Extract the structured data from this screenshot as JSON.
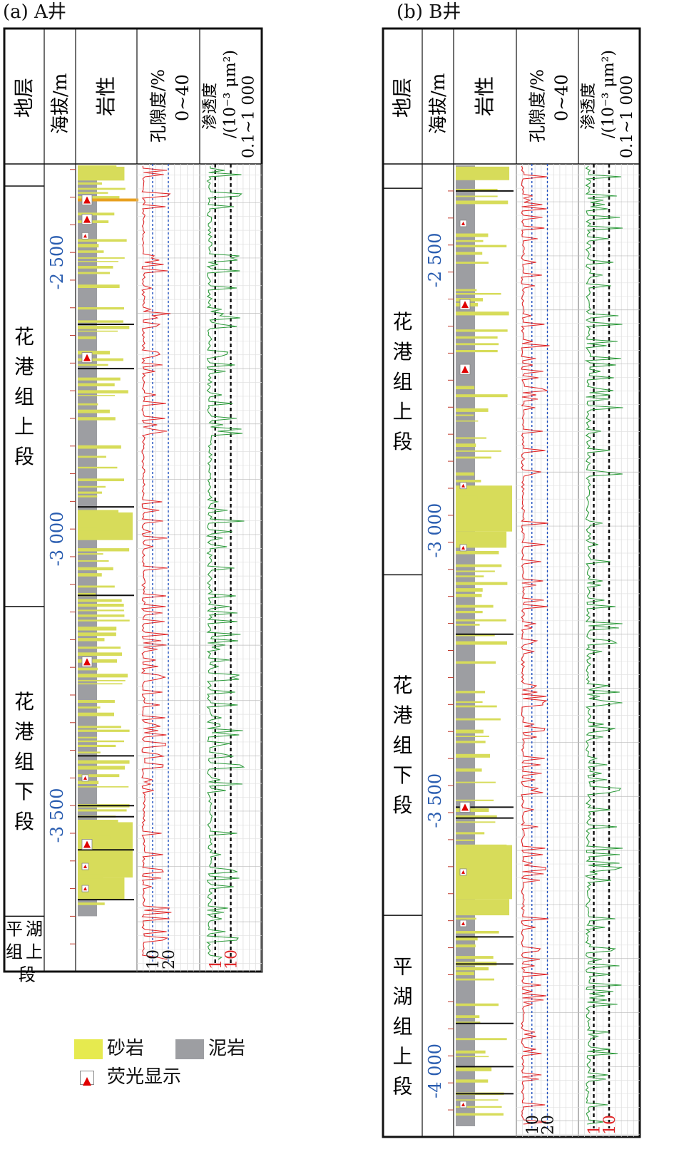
{
  "panels": [
    {
      "id": "A",
      "title": "(a) A井",
      "headers": {
        "strata": "地层",
        "elevation": "海拔/m",
        "lithology": "岩性",
        "porosity": "孔隙度/%",
        "porosity_range": "0~40",
        "permeability": "渗透度",
        "permeability_unit": "/(10⁻³ μm²)",
        "permeability_range": "0.1~1 000"
      },
      "strata": [
        {
          "name": "",
          "top": -2330,
          "base": -2370
        },
        {
          "name": "花港组上段",
          "top": -2370,
          "base": -3130
        },
        {
          "name": "花港组下段",
          "top": -3130,
          "base": -3690
        },
        {
          "name": "平湖组上段",
          "top": -3690,
          "base": -3790
        }
      ],
      "depth_range": [
        -2330,
        -3790
      ],
      "depth_labels": [
        "-2 500",
        "-3 000",
        "-3 500"
      ],
      "depth_label_values": [
        -2500,
        -3000,
        -3500
      ],
      "bottom_ticks": {
        "porosity": [
          "10",
          "20"
        ],
        "permeability": [
          "1",
          "10"
        ]
      }
    },
    {
      "id": "B",
      "title": "(b) B井",
      "headers": {
        "strata": "地层",
        "elevation": "海拔/m",
        "lithology": "岩性",
        "porosity": "孔隙度/%",
        "porosity_range": "0~40",
        "permeability": "渗透度",
        "permeability_unit": "/(10⁻³ μm²)",
        "permeability_range": "0.1~1 000"
      },
      "strata": [
        {
          "name": "",
          "top": -2330,
          "base": -2375
        },
        {
          "name": "花港组上段",
          "top": -2375,
          "base": -3090
        },
        {
          "name": "花港组下段",
          "top": -3090,
          "base": -3720
        },
        {
          "name": "平湖组上段",
          "top": -3720,
          "base": -4130
        }
      ],
      "depth_range": [
        -2330,
        -4130
      ],
      "depth_labels": [
        "-2 500",
        "-3 000",
        "-3 500",
        "-4 000"
      ],
      "depth_label_values": [
        -2500,
        -3000,
        -3500,
        -4000
      ],
      "bottom_ticks": {
        "porosity": [
          "10",
          "20"
        ],
        "permeability": [
          "1",
          "10"
        ]
      }
    }
  ],
  "legend": {
    "sandstone": "砂岩",
    "mudstone": "泥岩",
    "fluorescence": "荧光显示"
  },
  "colors": {
    "sandstone": "#d7dc5a",
    "mudstone": "#9d9ea2",
    "porosity_curve": "#e0282a",
    "permeability_curve": "#2e9b3c",
    "depth_label": "#2a5db0",
    "fluorescence": "#e00000"
  }
}
